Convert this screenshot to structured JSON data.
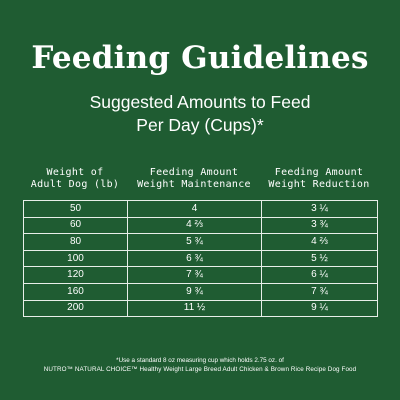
{
  "title": "Feeding Guidelines",
  "subtitle_line1": "Suggested Amounts to Feed",
  "subtitle_line2": "Per Day (Cups)*",
  "columns": [
    {
      "line1": "Weight of",
      "line2": "Adult Dog (lb)"
    },
    {
      "line1": "Feeding Amount",
      "line2": "Weight Maintenance"
    },
    {
      "line1": "Feeding Amount",
      "line2": "Weight Reduction"
    }
  ],
  "rows": [
    [
      "50",
      "4",
      "3 ¼"
    ],
    [
      "60",
      "4 ⅔",
      "3 ¾"
    ],
    [
      "80",
      "5 ¾",
      "4 ⅔"
    ],
    [
      "100",
      "6 ¾",
      "5 ½"
    ],
    [
      "120",
      "7 ¾",
      "6 ¼"
    ],
    [
      "160",
      "9 ¾",
      "7 ¾"
    ],
    [
      "200",
      "11 ½",
      "9 ¼"
    ]
  ],
  "footnote_line1": "*Use a standard 8 oz measuring cup which holds 2.75 oz. of",
  "footnote_line2": "NUTRO™ NATURAL CHOICE™ Healthy Weight Large Breed Adult Chicken & Brown Rice Recipe Dog Food",
  "colors": {
    "background": "#1f5c32",
    "text": "#ffffff",
    "grid": "#e8efe9"
  }
}
